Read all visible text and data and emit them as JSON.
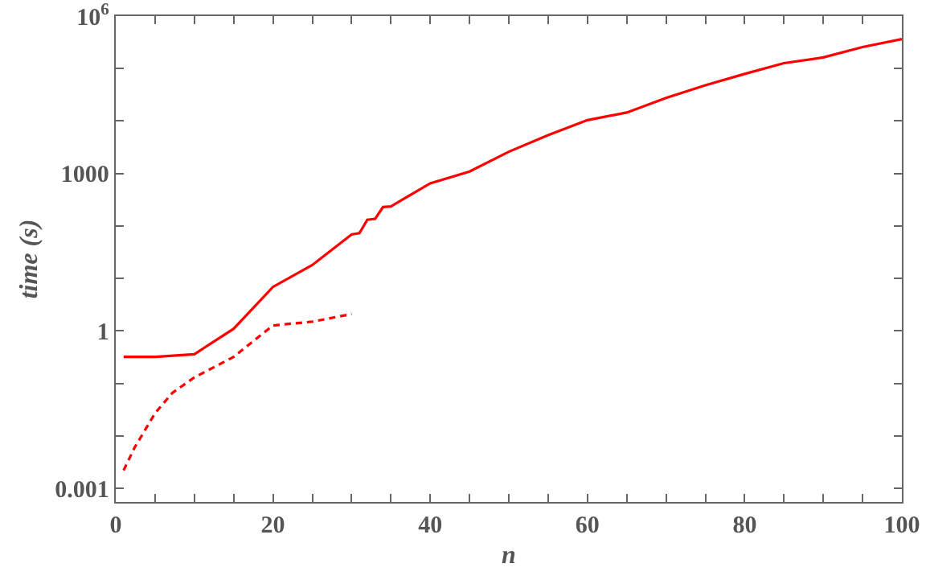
{
  "chart_data": {
    "type": "line",
    "xlabel": "n",
    "ylabel": "time (s)",
    "log": "y",
    "xlim": [
      0,
      100
    ],
    "ylim": [
      0.00055,
      1000000
    ],
    "xticks": [
      0,
      {
        "value": 5,
        "label": null
      },
      {
        "value": 10,
        "label": null
      },
      {
        "value": 15,
        "label": null
      },
      20,
      {
        "value": 25,
        "label": null
      },
      {
        "value": 30,
        "label": null
      },
      {
        "value": 35,
        "label": null
      },
      40,
      {
        "value": 45,
        "label": null
      },
      {
        "value": 50,
        "label": null
      },
      {
        "value": 55,
        "label": null
      },
      60,
      {
        "value": 65,
        "label": null
      },
      {
        "value": 70,
        "label": null
      },
      {
        "value": 75,
        "label": null
      },
      80,
      {
        "value": 85,
        "label": null
      },
      {
        "value": 90,
        "label": null
      },
      {
        "value": 95,
        "label": null
      },
      100
    ],
    "yticks": [
      0.001,
      {
        "value": 0.01,
        "label": null
      },
      {
        "value": 0.1,
        "label": null
      },
      1,
      {
        "value": 10,
        "label": null
      },
      {
        "value": 100,
        "label": null
      },
      1000,
      {
        "value": 10000,
        "label": null
      },
      {
        "value": 100000,
        "label": null
      },
      {
        "value": 1000000,
        "label": "10$^{6}$"
      }
    ],
    "marker": "none",
    "series": [
      {
        "color": "#ff0000",
        "line_style": "solid",
        "x": [
          1,
          5,
          10,
          15,
          20,
          25,
          30,
          31,
          32,
          33,
          34,
          35,
          40,
          45,
          50,
          55,
          60,
          65,
          70,
          75,
          80,
          85,
          90,
          95,
          100
        ],
        "values": [
          0.32,
          0.32,
          0.36,
          1.1,
          6.9,
          18,
          69,
          73,
          131,
          137,
          230,
          236,
          650,
          1090,
          2600,
          5400,
          10400,
          14500,
          27500,
          48000,
          79000,
          127000,
          163000,
          257000,
          365000
        ]
      },
      {
        "color": "#ff0000",
        "line_style": "dashed",
        "x": [
          1,
          2.4,
          5,
          7.2,
          10,
          15,
          20,
          25,
          30
        ],
        "values": [
          0.0022,
          0.006,
          0.027,
          0.066,
          0.13,
          0.32,
          1.27,
          1.5,
          2.1
        ]
      }
    ]
  }
}
